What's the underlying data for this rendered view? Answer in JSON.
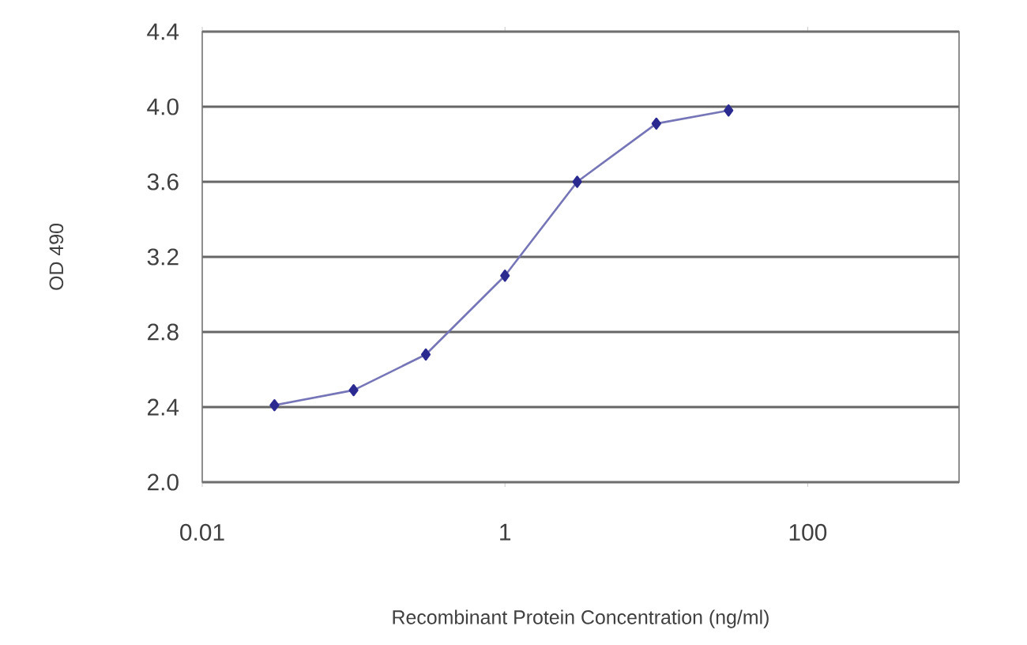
{
  "chart_data": {
    "type": "line",
    "xlabel": "Recombinant Protein Concentration (ng/ml)",
    "ylabel": "OD 490",
    "x": [
      0.03,
      0.1,
      0.3,
      1,
      3,
      10,
      30
    ],
    "series": [
      {
        "color": "#2a2a90",
        "values": [
          2.41,
          2.49,
          2.68,
          3.1,
          3.6,
          3.91,
          3.98
        ]
      }
    ],
    "log": "x",
    "xlim": [
      0.01,
      1000
    ],
    "xticks": [
      0.01,
      1,
      100
    ],
    "ylim": [
      2.0,
      4.4
    ],
    "yticks": [
      {
        "value": 2.0,
        "label": "2.0"
      },
      {
        "value": 2.4,
        "label": "2.4"
      },
      {
        "value": 2.8,
        "label": "2.8"
      },
      {
        "value": 3.2,
        "label": "3.2"
      },
      {
        "value": 3.6,
        "label": "3.6"
      },
      {
        "value": 4.0,
        "label": "4.0"
      },
      {
        "value": 4.4,
        "label": "4.4"
      }
    ],
    "grid": "y",
    "marker": "diamond",
    "line_style": "solid"
  }
}
